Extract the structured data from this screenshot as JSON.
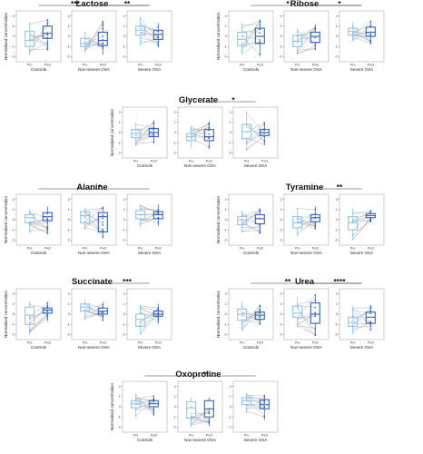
{
  "figure": {
    "y_axis_label": "Normalised concentration",
    "y_ticks": [
      "-2",
      "-1",
      "0",
      "1",
      "2"
    ],
    "x_ticks": [
      "Pre",
      "Post"
    ],
    "groups": [
      "Controls",
      "Non-severe OSA",
      "Severe OSA"
    ],
    "colors": {
      "pre": "#8ec5ee",
      "post": "#2e62c8",
      "line": "#9a9a9a",
      "frame": "#9a9a9a"
    }
  },
  "chart_data": [
    {
      "type": "box",
      "title": "Lactose",
      "ylim": [
        -2.5,
        2.5
      ],
      "significance": [
        {
          "from": "Controls",
          "to": "Severe OSA",
          "label": "***"
        },
        {
          "from": "Non-severe OSA",
          "to": "Severe OSA",
          "label": "**"
        }
      ],
      "panels": [
        {
          "group": "Controls",
          "pre": {
            "q1": -1.0,
            "median": -0.4,
            "q3": 0.5,
            "whisker_low": -1.9,
            "whisker_high": 1.4
          },
          "post": {
            "q1": -0.2,
            "median": 0.3,
            "q3": 1.0,
            "whisker_low": -1.4,
            "whisker_high": 1.7
          }
        },
        {
          "group": "Non-severe OSA",
          "pre": {
            "q1": -1.0,
            "median": -0.7,
            "q3": -0.2,
            "whisker_low": -1.6,
            "whisker_high": 0.4
          },
          "post": {
            "q1": -0.9,
            "median": -0.4,
            "q3": 0.4,
            "whisker_low": -1.8,
            "whisker_high": 1.5
          }
        },
        {
          "group": "Severe OSA",
          "pre": {
            "q1": 0.1,
            "median": 0.6,
            "q3": 1.0,
            "whisker_low": -0.9,
            "whisker_high": 1.9
          },
          "post": {
            "q1": -0.3,
            "median": 0.2,
            "q3": 0.6,
            "whisker_low": -1.1,
            "whisker_high": 1.3
          }
        }
      ]
    },
    {
      "type": "box",
      "title": "Ribose",
      "ylim": [
        -2.5,
        2.5
      ],
      "significance": [
        {
          "from": "Controls",
          "to": "Severe OSA",
          "label": "*"
        },
        {
          "from": "Non-severe OSA",
          "to": "Severe OSA",
          "label": "*"
        }
      ],
      "panels": [
        {
          "group": "Controls",
          "pre": {
            "q1": -0.9,
            "median": -0.3,
            "q3": 0.4,
            "whisker_low": -1.7,
            "whisker_high": 1.3
          },
          "post": {
            "q1": -0.7,
            "median": 0.0,
            "q3": 0.8,
            "whisker_low": -1.9,
            "whisker_high": 1.6
          }
        },
        {
          "group": "Non-severe OSA",
          "pre": {
            "q1": -1.0,
            "median": -0.5,
            "q3": 0.1,
            "whisker_low": -1.8,
            "whisker_high": 0.8
          },
          "post": {
            "q1": -0.6,
            "median": 0.0,
            "q3": 0.4,
            "whisker_low": -1.3,
            "whisker_high": 1.2
          }
        },
        {
          "group": "Severe OSA",
          "pre": {
            "q1": 0.1,
            "median": 0.5,
            "q3": 0.8,
            "whisker_low": -0.4,
            "whisker_high": 1.4
          },
          "post": {
            "q1": 0.0,
            "median": 0.4,
            "q3": 0.9,
            "whisker_low": -0.7,
            "whisker_high": 1.6
          }
        }
      ]
    },
    {
      "type": "box",
      "title": "Glycerate",
      "ylim": [
        -2.5,
        2.5
      ],
      "significance": [
        {
          "from": "Non-severe OSA",
          "to": "Severe OSA",
          "label": "*"
        }
      ],
      "panels": [
        {
          "group": "Controls",
          "pre": {
            "q1": -0.5,
            "median": -0.1,
            "q3": 0.3,
            "whisker_low": -1.3,
            "whisker_high": 1.0
          },
          "post": {
            "q1": -0.4,
            "median": 0.0,
            "q3": 0.4,
            "whisker_low": -1.1,
            "whisker_high": 1.2
          }
        },
        {
          "group": "Non-severe OSA",
          "pre": {
            "q1": -0.8,
            "median": -0.4,
            "q3": -0.1,
            "whisker_low": -1.5,
            "whisker_high": 0.6
          },
          "post": {
            "q1": -0.8,
            "median": -0.4,
            "q3": 0.3,
            "whisker_low": -1.6,
            "whisker_high": 1.0
          }
        },
        {
          "group": "Severe OSA",
          "pre": {
            "q1": -0.6,
            "median": 0.1,
            "q3": 0.8,
            "whisker_low": -1.8,
            "whisker_high": 2.1
          },
          "post": {
            "q1": -0.3,
            "median": 0.0,
            "q3": 0.3,
            "whisker_low": -1.2,
            "whisker_high": 1.0
          }
        }
      ]
    },
    {
      "type": "box",
      "title": "Alanine",
      "ylim": [
        -2.5,
        2.5
      ],
      "significance": [
        {
          "from": "Controls",
          "to": "Severe OSA",
          "label": "*"
        }
      ],
      "panels": [
        {
          "group": "Controls",
          "pre": {
            "q1": -0.3,
            "median": 0.2,
            "q3": 0.5,
            "whisker_low": -1.3,
            "whisker_high": 1.0
          },
          "post": {
            "q1": -0.1,
            "median": 0.3,
            "q3": 0.7,
            "whisker_low": -1.4,
            "whisker_high": 1.3
          }
        },
        {
          "group": "Non-severe OSA",
          "pre": {
            "q1": -0.3,
            "median": 0.4,
            "q3": 0.8,
            "whisker_low": -1.0,
            "whisker_high": 1.2
          },
          "post": {
            "q1": -1.2,
            "median": 0.3,
            "q3": 0.7,
            "whisker_low": -1.8,
            "whisker_high": 1.3
          }
        },
        {
          "group": "Severe OSA",
          "pre": {
            "q1": 0.1,
            "median": 0.5,
            "q3": 0.9,
            "whisker_low": -0.7,
            "whisker_high": 1.5
          },
          "post": {
            "q1": 0.1,
            "median": 0.5,
            "q3": 0.8,
            "whisker_low": -0.6,
            "whisker_high": 1.5
          }
        }
      ]
    },
    {
      "type": "box",
      "title": "Tyramine",
      "ylim": [
        -2.5,
        2.5
      ],
      "significance": [
        {
          "from": "Non-severe OSA",
          "to": "Severe OSA",
          "label": "**"
        }
      ],
      "panels": [
        {
          "group": "Controls",
          "pre": {
            "q1": -0.5,
            "median": 0.0,
            "q3": 0.3,
            "whisker_low": -1.3,
            "whisker_high": 0.9
          },
          "post": {
            "q1": -0.4,
            "median": 0.1,
            "q3": 0.5,
            "whisker_low": -1.4,
            "whisker_high": 1.1
          }
        },
        {
          "group": "Non-severe OSA",
          "pre": {
            "q1": -0.8,
            "median": -0.3,
            "q3": 0.3,
            "whisker_low": -1.5,
            "whisker_high": 1.2
          },
          "post": {
            "q1": -0.2,
            "median": 0.2,
            "q3": 0.5,
            "whisker_low": -0.9,
            "whisker_high": 1.3
          }
        },
        {
          "group": "Severe OSA",
          "pre": {
            "q1": -1.0,
            "median": -0.3,
            "q3": 0.3,
            "whisker_low": -2.0,
            "whisker_high": 1.1
          },
          "post": {
            "q1": 0.2,
            "median": 0.4,
            "q3": 0.6,
            "whisker_low": -0.2,
            "whisker_high": 0.9
          }
        }
      ]
    },
    {
      "type": "box",
      "title": "Succinate",
      "ylim": [
        -2.5,
        2.5
      ],
      "significance": [
        {
          "from": "Non-severe OSA",
          "to": "Severe OSA",
          "label": "***"
        }
      ],
      "panels": [
        {
          "group": "Controls",
          "pre": {
            "q1": -1.0,
            "median": -0.1,
            "q3": 0.7,
            "whisker_low": -2.0,
            "whisker_high": 1.3
          },
          "post": {
            "q1": 0.1,
            "median": 0.4,
            "q3": 0.6,
            "whisker_low": -0.7,
            "whisker_high": 1.2
          }
        },
        {
          "group": "Non-severe OSA",
          "pre": {
            "q1": 0.3,
            "median": 0.7,
            "q3": 1.0,
            "whisker_low": -0.5,
            "whisker_high": 1.5
          },
          "post": {
            "q1": 0.0,
            "median": 0.3,
            "q3": 0.6,
            "whisker_low": -0.7,
            "whisker_high": 1.2
          }
        },
        {
          "group": "Severe OSA",
          "pre": {
            "q1": -1.2,
            "median": -0.5,
            "q3": 0.0,
            "whisker_low": -2.0,
            "whisker_high": 0.9
          },
          "post": {
            "q1": -0.2,
            "median": 0.0,
            "q3": 0.3,
            "whisker_low": -0.9,
            "whisker_high": 1.0
          }
        }
      ]
    },
    {
      "type": "box",
      "title": "Urea",
      "ylim": [
        -2.5,
        2.5
      ],
      "significance": [
        {
          "from": "Controls",
          "to": "Severe OSA",
          "label": "**"
        },
        {
          "from": "Non-severe OSA",
          "to": "Severe OSA",
          "label": "****"
        }
      ],
      "panels": [
        {
          "group": "Controls",
          "pre": {
            "q1": -0.6,
            "median": 0.0,
            "q3": 0.5,
            "whisker_low": -1.6,
            "whisker_high": 1.2
          },
          "post": {
            "q1": -0.5,
            "median": -0.1,
            "q3": 0.2,
            "whisker_low": -1.1,
            "whisker_high": 0.9
          }
        },
        {
          "group": "Non-severe OSA",
          "pre": {
            "q1": -0.3,
            "median": 0.1,
            "q3": 0.8,
            "whisker_low": -1.2,
            "whisker_high": 1.7
          },
          "post": {
            "q1": -0.9,
            "median": 0.0,
            "q3": 1.1,
            "whisker_low": -2.1,
            "whisker_high": 1.9
          }
        },
        {
          "group": "Severe OSA",
          "pre": {
            "q1": -1.2,
            "median": -0.8,
            "q3": -0.3,
            "whisker_low": -2.0,
            "whisker_high": 0.7
          },
          "post": {
            "q1": -0.9,
            "median": -0.3,
            "q3": 0.2,
            "whisker_low": -1.6,
            "whisker_high": 0.9
          }
        }
      ]
    },
    {
      "type": "box",
      "title": "Oxoproline",
      "ylim": [
        -2.5,
        2.5
      ],
      "significance": [
        {
          "from": "Controls",
          "to": "Severe OSA",
          "label": "**"
        }
      ],
      "panels": [
        {
          "group": "Controls",
          "pre": {
            "q1": -0.1,
            "median": 0.3,
            "q3": 0.6,
            "whisker_low": -1.0,
            "whisker_high": 1.2
          },
          "post": {
            "q1": 0.0,
            "median": 0.3,
            "q3": 0.6,
            "whisker_low": -0.8,
            "whisker_high": 1.1
          }
        },
        {
          "group": "Non-severe OSA",
          "pre": {
            "q1": -1.1,
            "median": -0.1,
            "q3": 0.5,
            "whisker_low": -2.0,
            "whisker_high": 0.9
          },
          "post": {
            "q1": -1.0,
            "median": -0.2,
            "q3": 0.6,
            "whisker_low": -1.9,
            "whisker_high": 0.9
          }
        },
        {
          "group": "Severe OSA",
          "pre": {
            "q1": 0.2,
            "median": 0.6,
            "q3": 0.9,
            "whisker_low": -0.6,
            "whisker_high": 1.4
          },
          "post": {
            "q1": -0.2,
            "median": 0.2,
            "q3": 0.7,
            "whisker_low": -1.3,
            "whisker_high": 1.2
          }
        }
      ]
    }
  ]
}
